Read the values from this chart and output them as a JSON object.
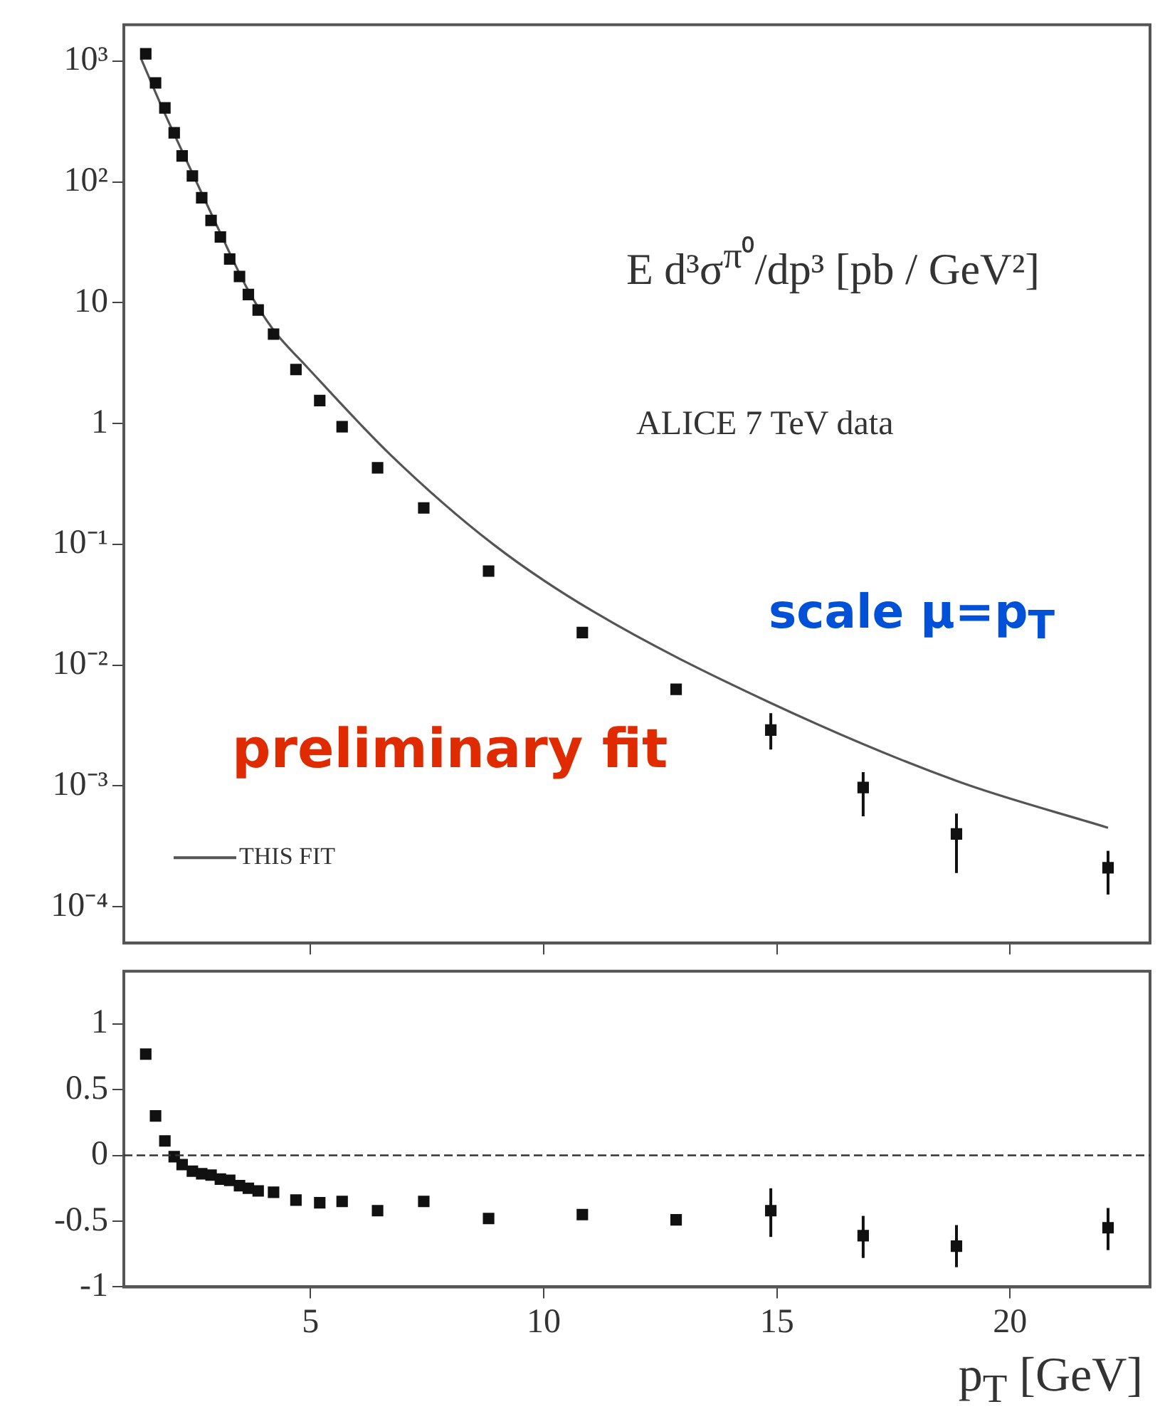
{
  "chart_data": [
    {
      "type": "scatter",
      "ylabel": "E d³σ$^{π⁰}$/dp³ [pb / GeV²]",
      "annotations": [
        "ALICE 7 TeV data",
        "preliminary fit",
        "scale μ=p$_{T}$"
      ],
      "x": [
        1.47,
        1.68,
        1.88,
        2.08,
        2.25,
        2.47,
        2.67,
        2.87,
        3.07,
        3.27,
        3.48,
        3.67,
        3.88,
        4.21,
        4.69,
        5.2,
        5.68,
        6.44,
        7.43,
        8.82,
        10.83,
        12.84,
        14.87,
        16.85,
        18.85,
        22.1
      ],
      "series": [
        {
          "type": "scatter",
          "color": "#111111",
          "marker": "square",
          "values": [
            1150,
            660,
            410,
            255,
            164,
            112,
            74,
            48,
            35,
            23,
            16.5,
            11.7,
            8.7,
            5.5,
            2.8,
            1.55,
            0.94,
            0.43,
            0.2,
            0.06,
            0.0186,
            0.0063,
            0.0029,
            0.00097,
            0.0004,
            0.00021
          ],
          "errors": [
            null,
            null,
            null,
            null,
            null,
            null,
            null,
            null,
            null,
            null,
            null,
            null,
            null,
            null,
            null,
            null,
            null,
            null,
            null,
            null,
            null,
            null,
            [
              0.002,
              0.004
            ],
            [
              0.00056,
              0.0013
            ],
            [
              0.00019,
              0.00059
            ],
            [
              0.000126,
              0.00029
            ]
          ]
        },
        {
          "type": "line",
          "name": "THIS FIT",
          "color": "#555555",
          "marker": "none",
          "line_style": "solid",
          "x": [
            1.37,
            1.8,
            2.44,
            3.0,
            3.65,
            4.2,
            4.87,
            6.74,
            8.92,
            11.05,
            14.8,
            18.85,
            22.1
          ],
          "values": [
            1050,
            430,
            125,
            43,
            13,
            6,
            3.1,
            0.54,
            0.1,
            0.028,
            0.005,
            0.0011,
            0.00045
          ]
        }
      ],
      "log": "y",
      "xlim": [
        1,
        23
      ],
      "xticks": [
        5,
        10,
        15,
        20
      ],
      "ylim": [
        5e-05,
        2000
      ],
      "yticks": [
        {
          "value": 0.0001,
          "label": "10⁻⁴"
        },
        {
          "value": 0.001,
          "label": "10⁻³"
        },
        {
          "value": 0.01,
          "label": "10⁻²"
        },
        {
          "value": 0.1,
          "label": "10⁻¹"
        },
        1,
        10,
        {
          "value": 100,
          "label": "10²"
        },
        {
          "value": 1000,
          "label": "10³"
        }
      ],
      "tick_labels": "y",
      "grid": false,
      "legend": "bottom left"
    },
    {
      "type": "scatter",
      "xlabel": "p$_{T}$ [GeV]",
      "x": [
        1.47,
        1.68,
        1.88,
        2.08,
        2.25,
        2.47,
        2.67,
        2.87,
        3.07,
        3.27,
        3.48,
        3.67,
        3.88,
        4.21,
        4.69,
        5.2,
        5.68,
        6.44,
        7.43,
        8.82,
        10.83,
        12.84,
        14.87,
        16.85,
        18.85,
        22.1
      ],
      "series": [
        {
          "type": "scatter",
          "color": "#111111",
          "marker": "square",
          "values": [
            0.77,
            0.3,
            0.11,
            -0.01,
            -0.07,
            -0.12,
            -0.14,
            -0.15,
            -0.18,
            -0.19,
            -0.23,
            -0.25,
            -0.27,
            -0.28,
            -0.34,
            -0.36,
            -0.35,
            -0.42,
            -0.35,
            -0.48,
            -0.45,
            -0.49,
            -0.42,
            -0.61,
            -0.69,
            -0.55
          ],
          "errors": [
            null,
            null,
            null,
            null,
            null,
            null,
            null,
            null,
            null,
            null,
            null,
            null,
            null,
            null,
            null,
            null,
            null,
            null,
            null,
            null,
            null,
            null,
            [
              -0.62,
              -0.25
            ],
            [
              -0.78,
              -0.46
            ],
            [
              -0.85,
              -0.53
            ],
            [
              -0.72,
              -0.4
            ]
          ]
        }
      ],
      "xlim": [
        1,
        23
      ],
      "xticks": [
        5,
        10,
        15,
        20
      ],
      "ylim": [
        -1,
        1.4
      ],
      "yticks": [
        -1,
        -0.5,
        0,
        0.5,
        1
      ],
      "ref_lines": [
        {
          "axis": "y",
          "value": 0,
          "line_style": "dashed",
          "color": "#333333"
        }
      ],
      "grid": false,
      "legend": false
    }
  ]
}
